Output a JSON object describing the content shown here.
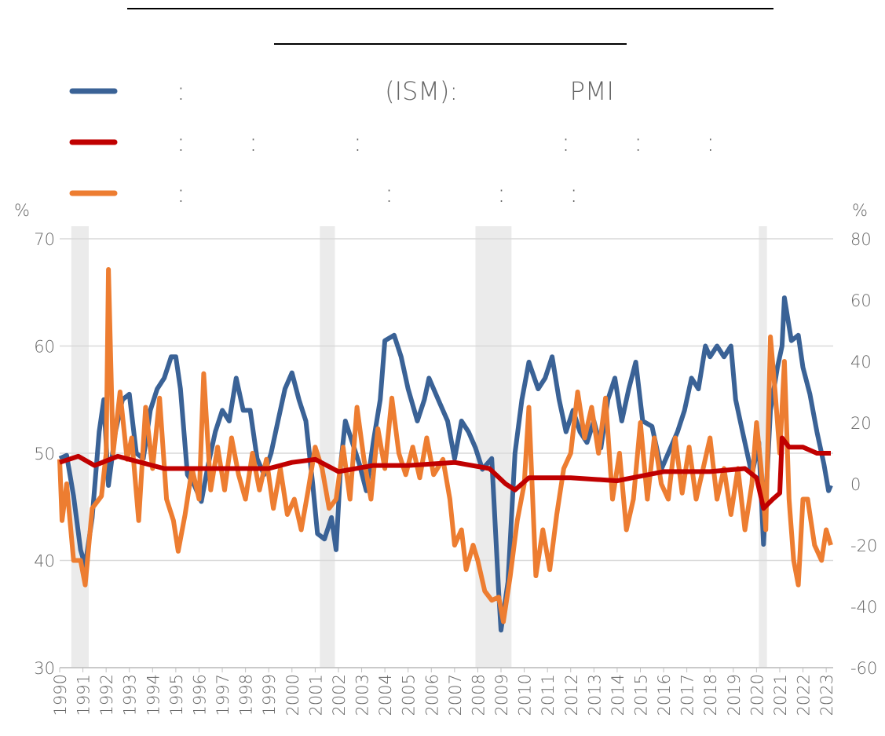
{
  "chart_data": {
    "type": "line",
    "y_unit_label": "%",
    "y2_unit_label": "%",
    "xlim": [
      1990,
      2023.3
    ],
    "xticks": [
      1990,
      1991,
      1992,
      1993,
      1994,
      1995,
      1996,
      1997,
      1998,
      1999,
      2000,
      2001,
      2002,
      2003,
      2004,
      2005,
      2006,
      2007,
      2008,
      2009,
      2010,
      2011,
      2012,
      2013,
      2014,
      2015,
      2016,
      2017,
      2018,
      2019,
      2020,
      2021,
      2022,
      2023
    ],
    "ylim": [
      30,
      70
    ],
    "yticks": [
      30,
      40,
      50,
      60,
      70
    ],
    "y2lim": [
      -60,
      80
    ],
    "y2ticks": [
      -60,
      -40,
      -20,
      0,
      20,
      40,
      60,
      80
    ],
    "grid": true,
    "shaded_periods": [
      [
        1990.5,
        1991.25
      ],
      [
        2001.2,
        2001.85
      ],
      [
        2007.9,
        2009.45
      ],
      [
        2020.1,
        2020.45
      ]
    ],
    "series": [
      {
        "name": ":                         (ISM):              PMI",
        "color": "#3a6296",
        "axis": "y",
        "x": [
          1990.0,
          1990.3,
          1990.6,
          1990.9,
          1991.1,
          1991.4,
          1991.7,
          1991.9,
          1992.1,
          1992.4,
          1992.7,
          1993.0,
          1993.3,
          1993.6,
          1993.9,
          1994.2,
          1994.5,
          1994.8,
          1995.0,
          1995.2,
          1995.5,
          1995.8,
          1996.1,
          1996.4,
          1996.7,
          1997.0,
          1997.3,
          1997.6,
          1997.9,
          1998.2,
          1998.5,
          1998.8,
          1999.1,
          1999.4,
          1999.7,
          2000.0,
          2000.3,
          2000.6,
          2000.9,
          2001.1,
          2001.4,
          2001.7,
          2001.9,
          2002.1,
          2002.3,
          2002.6,
          2002.9,
          2003.2,
          2003.5,
          2003.8,
          2004.0,
          2004.4,
          2004.7,
          2005.0,
          2005.4,
          2005.7,
          2005.9,
          2006.3,
          2006.7,
          2007.0,
          2007.3,
          2007.6,
          2007.9,
          2008.2,
          2008.6,
          2008.9,
          2009.0,
          2009.3,
          2009.6,
          2009.9,
          2010.2,
          2010.6,
          2010.9,
          2011.2,
          2011.5,
          2011.8,
          2012.1,
          2012.4,
          2012.7,
          2013.0,
          2013.3,
          2013.6,
          2013.9,
          2014.2,
          2014.5,
          2014.8,
          2015.1,
          2015.5,
          2015.9,
          2016.2,
          2016.6,
          2016.9,
          2017.2,
          2017.5,
          2017.8,
          2018.0,
          2018.3,
          2018.6,
          2018.9,
          2019.1,
          2019.4,
          2019.8,
          2020.1,
          2020.3,
          2020.6,
          2020.9,
          2021.1,
          2021.2,
          2021.5,
          2021.8,
          2022.0,
          2022.3,
          2022.6,
          2022.9,
          2023.1,
          2023.2
        ],
        "values": [
          49.5,
          49.8,
          46,
          41,
          39.5,
          44,
          52,
          55,
          47,
          52,
          55,
          55.5,
          50,
          49.5,
          54,
          56,
          57,
          59,
          59,
          56,
          48,
          47,
          45.5,
          49,
          52,
          54,
          53,
          57,
          54,
          54,
          49.5,
          48,
          50,
          53,
          56,
          57.5,
          55,
          53,
          47,
          42.5,
          42,
          44,
          41,
          49,
          53,
          51,
          49,
          46.5,
          51,
          55,
          60.5,
          61,
          59,
          56,
          53,
          55,
          57,
          55,
          53,
          49.5,
          53,
          52,
          50.5,
          48.5,
          49.5,
          37,
          33.5,
          38,
          50,
          55,
          58.5,
          56,
          57,
          59,
          55,
          52,
          54,
          52,
          51,
          53,
          50.5,
          55,
          57,
          53,
          56,
          58.5,
          53,
          52.5,
          48.5,
          50,
          52,
          54,
          57,
          56,
          60,
          59,
          60,
          59,
          60,
          55,
          52,
          48,
          51,
          41.5,
          54,
          58,
          60,
          64.5,
          60.5,
          61,
          58,
          55.5,
          52,
          49,
          46.5,
          47
        ]
      },
      {
        "name": ":        :            :                         :        :        :",
        "color": "#c00000",
        "axis": "y2",
        "x": [
          1990.0,
          1990.8,
          1991.5,
          1992.5,
          1993.5,
          1994.5,
          1996.0,
          1998.0,
          1999.0,
          2000.0,
          2001.0,
          2002.0,
          2003.5,
          2005.0,
          2007.0,
          2008.5,
          2009.2,
          2009.6,
          2010.2,
          2012.0,
          2014.0,
          2016.0,
          2018.0,
          2019.5,
          2020.0,
          2020.3,
          2020.7,
          2021.0,
          2021.1,
          2021.4,
          2022.0,
          2022.6,
          2023.2
        ],
        "values": [
          7,
          9,
          6,
          9,
          7,
          5,
          5,
          5,
          5,
          7,
          8,
          4,
          6,
          6,
          7,
          5,
          0,
          -2,
          2,
          2,
          1,
          4,
          4,
          5,
          2,
          -8,
          -5,
          -3,
          15,
          12,
          12,
          10,
          10
        ]
      },
      {
        "name": ":                         :             :        :",
        "color": "#ed7d31",
        "axis": "y2",
        "x": [
          1990.0,
          1990.1,
          1990.3,
          1990.6,
          1990.9,
          1991.1,
          1991.4,
          1991.8,
          1992.0,
          1992.1,
          1992.3,
          1992.6,
          1992.9,
          1993.1,
          1993.4,
          1993.7,
          1994.0,
          1994.3,
          1994.6,
          1994.9,
          1995.1,
          1995.4,
          1995.7,
          1996.0,
          1996.2,
          1996.5,
          1996.8,
          1997.1,
          1997.4,
          1997.7,
          1998.0,
          1998.3,
          1998.6,
          1998.9,
          1999.2,
          1999.5,
          1999.8,
          2000.1,
          2000.4,
          2000.7,
          2001.0,
          2001.3,
          2001.6,
          2001.9,
          2002.2,
          2002.5,
          2002.8,
          2003.1,
          2003.4,
          2003.7,
          2004.0,
          2004.3,
          2004.6,
          2004.9,
          2005.2,
          2005.5,
          2005.8,
          2006.1,
          2006.5,
          2006.8,
          2007.0,
          2007.3,
          2007.5,
          2007.8,
          2008.0,
          2008.3,
          2008.6,
          2008.9,
          2009.1,
          2009.4,
          2009.7,
          2010.0,
          2010.2,
          2010.5,
          2010.8,
          2011.1,
          2011.4,
          2011.7,
          2012.0,
          2012.3,
          2012.6,
          2012.9,
          2013.2,
          2013.5,
          2013.8,
          2014.1,
          2014.4,
          2014.7,
          2015.0,
          2015.3,
          2015.6,
          2015.9,
          2016.2,
          2016.5,
          2016.8,
          2017.1,
          2017.4,
          2017.7,
          2018.0,
          2018.3,
          2018.6,
          2018.9,
          2019.2,
          2019.5,
          2019.8,
          2020.0,
          2020.2,
          2020.4,
          2020.6,
          2020.8,
          2021.0,
          2021.2,
          2021.4,
          2021.6,
          2021.8,
          2022.0,
          2022.2,
          2022.5,
          2022.8,
          2023.0,
          2023.2
        ],
        "values": [
          8,
          -12,
          0,
          -25,
          -25,
          -33,
          -8,
          -4,
          10,
          70,
          10,
          30,
          8,
          15,
          -12,
          25,
          5,
          28,
          -5,
          -12,
          -22,
          -10,
          5,
          -5,
          36,
          -2,
          12,
          -2,
          15,
          3,
          -5,
          10,
          -2,
          8,
          -8,
          5,
          -10,
          -5,
          -15,
          -2,
          12,
          5,
          -8,
          -5,
          12,
          -5,
          25,
          8,
          -5,
          18,
          5,
          28,
          10,
          3,
          12,
          2,
          15,
          3,
          8,
          -5,
          -20,
          -15,
          -28,
          -20,
          -25,
          -35,
          -38,
          -37,
          -45,
          -30,
          -12,
          0,
          25,
          -30,
          -15,
          -28,
          -10,
          5,
          10,
          30,
          15,
          25,
          10,
          28,
          -5,
          10,
          -15,
          -5,
          20,
          -5,
          15,
          0,
          -5,
          15,
          -3,
          12,
          -5,
          5,
          15,
          -5,
          5,
          -10,
          5,
          -15,
          0,
          20,
          5,
          -15,
          48,
          30,
          10,
          40,
          -5,
          -25,
          -33,
          -5,
          -5,
          -20,
          -25,
          -15,
          -20
        ]
      }
    ]
  }
}
